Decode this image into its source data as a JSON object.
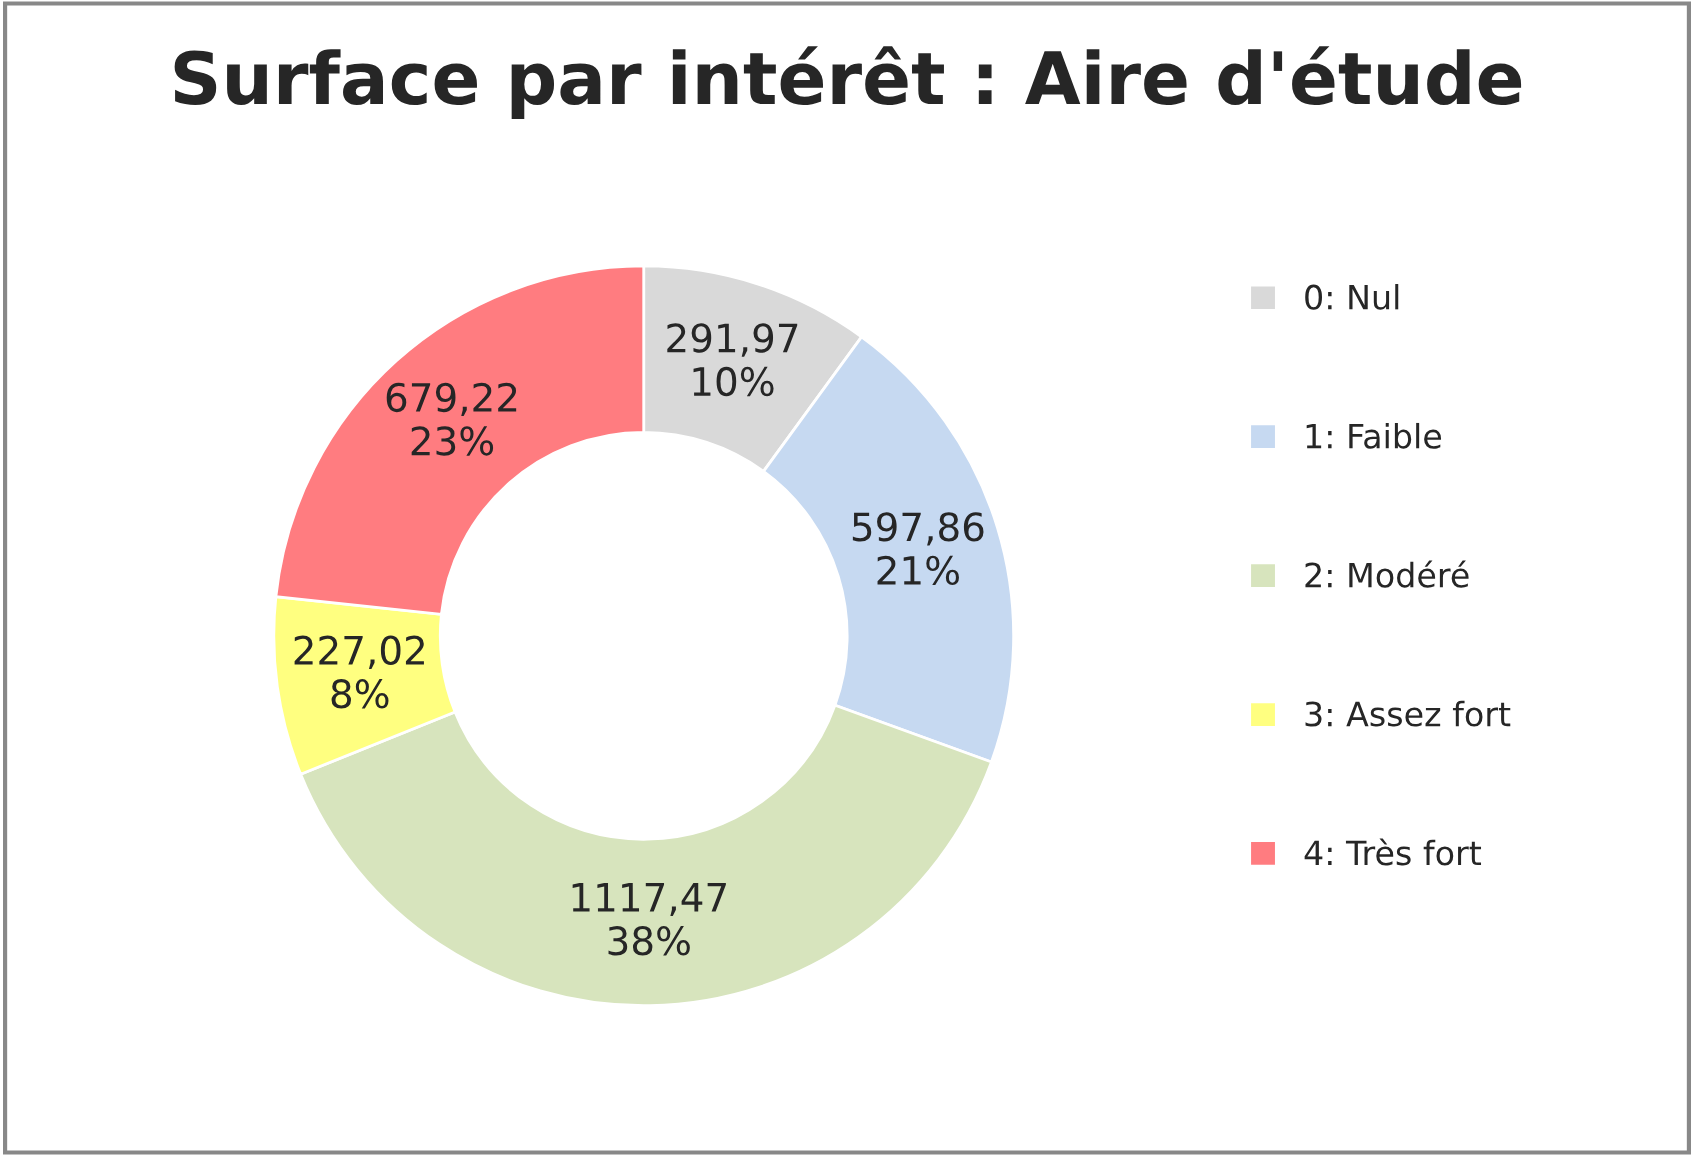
{
  "chart_data": {
    "type": "donut",
    "title": "Surface par intérêt : Aire d'étude",
    "categories": [
      "0: Nul",
      "1: Faible",
      "2: Modéré",
      "3: Assez fort",
      "4: Très fort"
    ],
    "values": [
      291.97,
      597.86,
      1117.47,
      227.02,
      679.22
    ],
    "colors": [
      "#d9d9d9",
      "#c6d9f1",
      "#d7e4bd",
      "#ffff80",
      "#ff7c80"
    ],
    "value_labels": [
      "291,97\n10%",
      "597,86\n21%",
      "1117,47\n38%",
      "227,02\n8%",
      "679,22\n23%"
    ],
    "legend": "right"
  }
}
